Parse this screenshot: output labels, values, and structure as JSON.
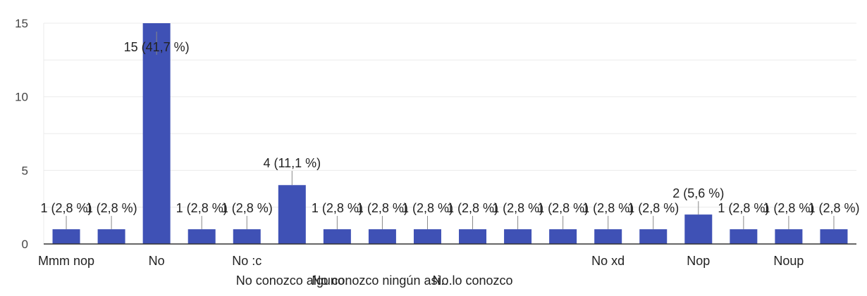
{
  "chart_data": {
    "type": "bar",
    "ylim": [
      0,
      15
    ],
    "yticks": [
      0,
      5,
      10,
      15
    ],
    "grid": true,
    "bar_color": "#3f51b5",
    "values": [
      1,
      1,
      15,
      1,
      1,
      4,
      1,
      1,
      1,
      1,
      1,
      1,
      1,
      1,
      2,
      1,
      1,
      1
    ],
    "data_labels": [
      "1 (2,8 %)",
      "1 (2,8 %)",
      "15 (41,7 %)",
      "1 (2,8 %)",
      "1 (2,8 %)",
      "4 (11,1 %)",
      "1 (2,8 %)",
      "1 (2,8 %)",
      "1 (2,8 %)",
      "1 (2,8 %)",
      "1 (2,8 %)",
      "1 (2,8 %)",
      "1 (2,8 %)",
      "1 (2,8 %)",
      "2 (5,6 %)",
      "1 (2,8 %)",
      "1 (2,8 %)",
      "1 (2,8 %)"
    ],
    "categories": [
      "Mmm nop",
      "",
      "No",
      "",
      "No :c",
      "No conozco alguno.",
      "",
      "No conozco ningún asi…",
      "",
      "No lo conozco",
      "",
      "",
      "No xd",
      "",
      "Nop",
      "",
      "Noup",
      ""
    ]
  }
}
